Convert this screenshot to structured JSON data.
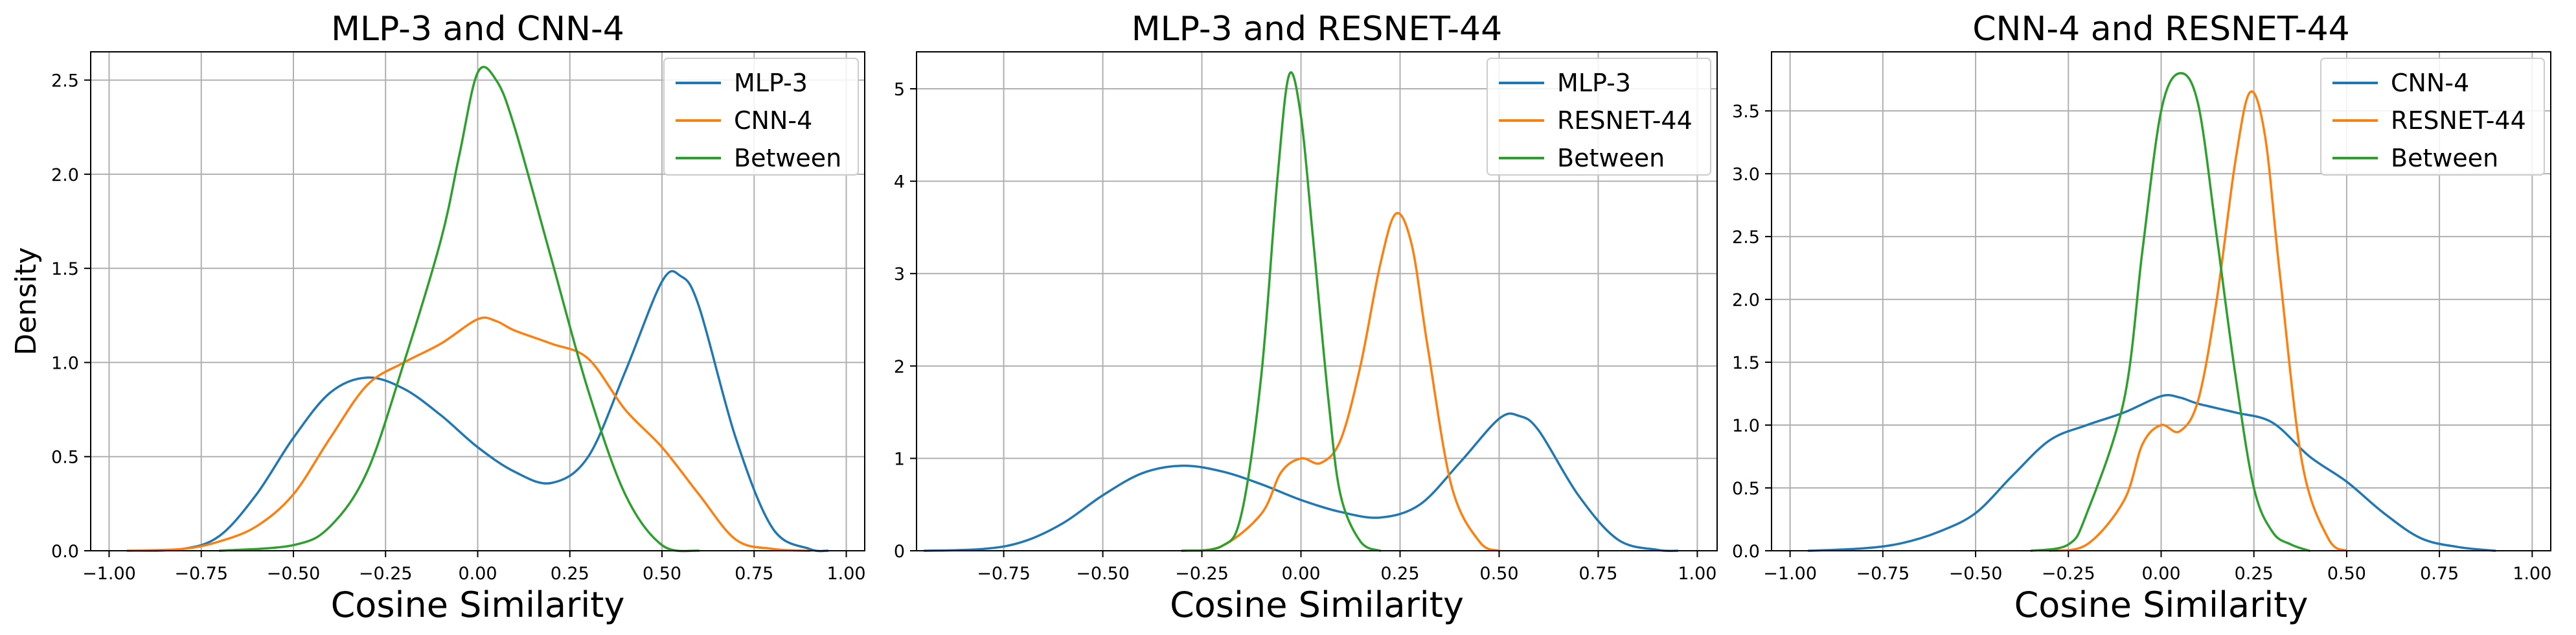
{
  "figure": {
    "ylabel": "Density",
    "colors": {
      "blue": "#1f77b4",
      "orange": "#ff7f0e",
      "green": "#2ca02c"
    }
  },
  "chart_data": [
    {
      "type": "line",
      "title": "MLP-3 and CNN-4",
      "xlabel": "Cosine Similarity",
      "ylabel": "Density",
      "xlim": [
        -1.05,
        1.05
      ],
      "ylim": [
        0,
        2.65
      ],
      "xticks": [
        -1.0,
        -0.75,
        -0.5,
        -0.25,
        0.0,
        0.25,
        0.5,
        0.75,
        1.0
      ],
      "xtick_labels": [
        "−1.00",
        "−0.75",
        "−0.50",
        "−0.25",
        "0.00",
        "0.25",
        "0.50",
        "0.75",
        "1.00"
      ],
      "yticks": [
        0,
        0.5,
        1.0,
        1.5,
        2.0,
        2.5
      ],
      "ytick_labels": [
        "0.0",
        "0.5",
        "1.0",
        "1.5",
        "2.0",
        "2.5"
      ],
      "grid": true,
      "legend": "top-right",
      "series": [
        {
          "name": "MLP-3",
          "color": "#1f77b4",
          "points": [
            [
              -0.95,
              0
            ],
            [
              -0.8,
              0.01
            ],
            [
              -0.7,
              0.08
            ],
            [
              -0.6,
              0.3
            ],
            [
              -0.5,
              0.6
            ],
            [
              -0.4,
              0.84
            ],
            [
              -0.3,
              0.92
            ],
            [
              -0.2,
              0.86
            ],
            [
              -0.1,
              0.72
            ],
            [
              0,
              0.55
            ],
            [
              0.1,
              0.42
            ],
            [
              0.2,
              0.36
            ],
            [
              0.3,
              0.5
            ],
            [
              0.4,
              0.95
            ],
            [
              0.5,
              1.43
            ],
            [
              0.55,
              1.46
            ],
            [
              0.6,
              1.3
            ],
            [
              0.7,
              0.6
            ],
            [
              0.8,
              0.12
            ],
            [
              0.9,
              0.01
            ],
            [
              0.95,
              0
            ]
          ]
        },
        {
          "name": "CNN-4",
          "color": "#ff7f0e",
          "points": [
            [
              -0.95,
              0
            ],
            [
              -0.8,
              0.01
            ],
            [
              -0.7,
              0.05
            ],
            [
              -0.6,
              0.13
            ],
            [
              -0.5,
              0.3
            ],
            [
              -0.4,
              0.6
            ],
            [
              -0.3,
              0.88
            ],
            [
              -0.2,
              1.0
            ],
            [
              -0.1,
              1.1
            ],
            [
              0,
              1.23
            ],
            [
              0.05,
              1.22
            ],
            [
              0.1,
              1.17
            ],
            [
              0.2,
              1.1
            ],
            [
              0.3,
              1.02
            ],
            [
              0.4,
              0.75
            ],
            [
              0.5,
              0.55
            ],
            [
              0.6,
              0.3
            ],
            [
              0.7,
              0.06
            ],
            [
              0.8,
              0.01
            ],
            [
              0.9,
              0
            ]
          ]
        },
        {
          "name": "Between",
          "color": "#2ca02c",
          "points": [
            [
              -0.7,
              0
            ],
            [
              -0.5,
              0.03
            ],
            [
              -0.4,
              0.13
            ],
            [
              -0.3,
              0.42
            ],
            [
              -0.2,
              1.0
            ],
            [
              -0.1,
              1.65
            ],
            [
              -0.05,
              2.1
            ],
            [
              0,
              2.54
            ],
            [
              0.05,
              2.5
            ],
            [
              0.1,
              2.25
            ],
            [
              0.2,
              1.55
            ],
            [
              0.3,
              0.85
            ],
            [
              0.4,
              0.3
            ],
            [
              0.5,
              0.03
            ],
            [
              0.6,
              0
            ]
          ]
        }
      ]
    },
    {
      "type": "line",
      "title": "MLP-3 and RESNET-44",
      "xlabel": "Cosine Similarity",
      "ylabel": "",
      "xlim": [
        -0.97,
        1.05
      ],
      "ylim": [
        0,
        5.4
      ],
      "xticks": [
        -0.75,
        -0.5,
        -0.25,
        0.0,
        0.25,
        0.5,
        0.75,
        1.0
      ],
      "xtick_labels": [
        "−0.75",
        "−0.50",
        "−0.25",
        "0.00",
        "0.25",
        "0.50",
        "0.75",
        "1.00"
      ],
      "yticks": [
        0,
        1,
        2,
        3,
        4,
        5
      ],
      "ytick_labels": [
        "0",
        "1",
        "2",
        "3",
        "4",
        "5"
      ],
      "grid": true,
      "legend": "top-right",
      "series": [
        {
          "name": "MLP-3",
          "color": "#1f77b4",
          "points": [
            [
              -0.95,
              0
            ],
            [
              -0.8,
              0.02
            ],
            [
              -0.7,
              0.1
            ],
            [
              -0.6,
              0.3
            ],
            [
              -0.5,
              0.6
            ],
            [
              -0.4,
              0.84
            ],
            [
              -0.3,
              0.92
            ],
            [
              -0.2,
              0.86
            ],
            [
              -0.1,
              0.72
            ],
            [
              0,
              0.55
            ],
            [
              0.1,
              0.42
            ],
            [
              0.2,
              0.36
            ],
            [
              0.3,
              0.5
            ],
            [
              0.4,
              0.95
            ],
            [
              0.5,
              1.43
            ],
            [
              0.55,
              1.46
            ],
            [
              0.6,
              1.3
            ],
            [
              0.7,
              0.6
            ],
            [
              0.8,
              0.12
            ],
            [
              0.9,
              0.01
            ],
            [
              0.95,
              0
            ]
          ]
        },
        {
          "name": "RESNET-44",
          "color": "#ff7f0e",
          "points": [
            [
              -0.3,
              0
            ],
            [
              -0.2,
              0.05
            ],
            [
              -0.1,
              0.4
            ],
            [
              -0.05,
              0.85
            ],
            [
              0,
              1.0
            ],
            [
              0.05,
              0.95
            ],
            [
              0.1,
              1.2
            ],
            [
              0.15,
              2.0
            ],
            [
              0.2,
              3.1
            ],
            [
              0.24,
              3.65
            ],
            [
              0.28,
              3.3
            ],
            [
              0.32,
              2.2
            ],
            [
              0.38,
              0.7
            ],
            [
              0.45,
              0.1
            ],
            [
              0.5,
              0
            ]
          ]
        },
        {
          "name": "Between",
          "color": "#2ca02c",
          "points": [
            [
              -0.3,
              0
            ],
            [
              -0.2,
              0.05
            ],
            [
              -0.15,
              0.4
            ],
            [
              -0.1,
              1.9
            ],
            [
              -0.06,
              4.0
            ],
            [
              -0.03,
              5.15
            ],
            [
              0,
              4.7
            ],
            [
              0.03,
              3.4
            ],
            [
              0.07,
              1.6
            ],
            [
              0.1,
              0.6
            ],
            [
              0.15,
              0.1
            ],
            [
              0.2,
              0
            ]
          ]
        }
      ]
    },
    {
      "type": "line",
      "title": "CNN-4 and RESNET-44",
      "xlabel": "Cosine Similarity",
      "ylabel": "",
      "xlim": [
        -1.05,
        1.05
      ],
      "ylim": [
        0,
        3.97
      ],
      "xticks": [
        -1.0,
        -0.75,
        -0.5,
        -0.25,
        0.0,
        0.25,
        0.5,
        0.75,
        1.0
      ],
      "xtick_labels": [
        "−1.00",
        "−0.75",
        "−0.50",
        "−0.25",
        "0.00",
        "0.25",
        "0.50",
        "0.75",
        "1.00"
      ],
      "yticks": [
        0,
        0.5,
        1.0,
        1.5,
        2.0,
        2.5,
        3.0,
        3.5
      ],
      "ytick_labels": [
        "0.0",
        "0.5",
        "1.0",
        "1.5",
        "2.0",
        "2.5",
        "3.0",
        "3.5"
      ],
      "grid": true,
      "legend": "top-right",
      "series": [
        {
          "name": "CNN-4",
          "color": "#1f77b4",
          "points": [
            [
              -0.95,
              0
            ],
            [
              -0.8,
              0.02
            ],
            [
              -0.7,
              0.06
            ],
            [
              -0.6,
              0.15
            ],
            [
              -0.5,
              0.3
            ],
            [
              -0.4,
              0.6
            ],
            [
              -0.3,
              0.88
            ],
            [
              -0.2,
              1.0
            ],
            [
              -0.1,
              1.1
            ],
            [
              0,
              1.23
            ],
            [
              0.05,
              1.22
            ],
            [
              0.1,
              1.17
            ],
            [
              0.2,
              1.1
            ],
            [
              0.3,
              1.02
            ],
            [
              0.4,
              0.75
            ],
            [
              0.5,
              0.55
            ],
            [
              0.6,
              0.3
            ],
            [
              0.7,
              0.1
            ],
            [
              0.8,
              0.03
            ],
            [
              0.9,
              0
            ]
          ]
        },
        {
          "name": "RESNET-44",
          "color": "#ff7f0e",
          "points": [
            [
              -0.3,
              0
            ],
            [
              -0.2,
              0.05
            ],
            [
              -0.1,
              0.4
            ],
            [
              -0.05,
              0.85
            ],
            [
              0,
              1.0
            ],
            [
              0.05,
              0.95
            ],
            [
              0.1,
              1.2
            ],
            [
              0.15,
              2.0
            ],
            [
              0.2,
              3.1
            ],
            [
              0.24,
              3.65
            ],
            [
              0.28,
              3.3
            ],
            [
              0.32,
              2.2
            ],
            [
              0.38,
              0.7
            ],
            [
              0.45,
              0.1
            ],
            [
              0.5,
              0
            ]
          ]
        },
        {
          "name": "Between",
          "color": "#2ca02c",
          "points": [
            [
              -0.35,
              0
            ],
            [
              -0.25,
              0.05
            ],
            [
              -0.2,
              0.3
            ],
            [
              -0.1,
              1.2
            ],
            [
              -0.05,
              2.4
            ],
            [
              0,
              3.5
            ],
            [
              0.05,
              3.8
            ],
            [
              0.1,
              3.55
            ],
            [
              0.15,
              2.5
            ],
            [
              0.2,
              1.4
            ],
            [
              0.25,
              0.5
            ],
            [
              0.3,
              0.15
            ],
            [
              0.35,
              0.05
            ],
            [
              0.4,
              0
            ]
          ]
        }
      ]
    }
  ]
}
